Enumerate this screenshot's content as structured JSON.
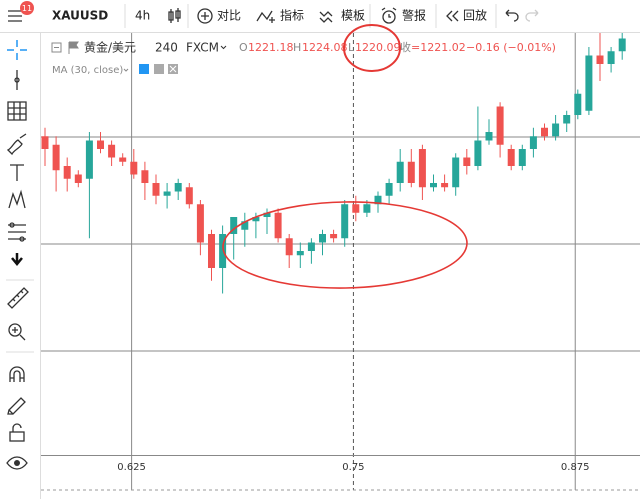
{
  "toolbar": {
    "menu_badge": "11",
    "symbol": "XAUUSD",
    "interval": "4h",
    "buttons": [
      "对比",
      "指标",
      "模板",
      "警报",
      "回放"
    ]
  },
  "legend": {
    "name": "黄金/美元",
    "interval": "240",
    "source": "FXCM",
    "open_label": "O",
    "open": "1221.18",
    "high_label": "H",
    "high": "1224.08",
    "low_label": "L",
    "low": "1220.09",
    "close_label": "收",
    "close": "=1221.02",
    "change": "−0.16 (−0.01%)",
    "indicator": "MA (30, close)"
  },
  "chart_data": {
    "type": "candlestick",
    "up_color": "#26a69a",
    "down_color": "#ef5350",
    "xlim": [
      0.5745,
      0.9115
    ],
    "xticks": [
      0.625,
      0.75,
      0.875
    ],
    "ylim": [
      0,
      100
    ],
    "candles": [
      {
        "open": 75,
        "high": 77,
        "low": 68,
        "close": 72
      },
      {
        "open": 73,
        "high": 75,
        "low": 62,
        "close": 67
      },
      {
        "open": 68,
        "high": 70,
        "low": 62,
        "close": 65
      },
      {
        "open": 66,
        "high": 67,
        "low": 63,
        "close": 64
      },
      {
        "open": 65,
        "high": 76,
        "low": 51,
        "close": 74
      },
      {
        "open": 74,
        "high": 76,
        "low": 71,
        "close": 72
      },
      {
        "open": 73,
        "high": 74,
        "low": 68,
        "close": 70
      },
      {
        "open": 70,
        "high": 71,
        "low": 68,
        "close": 69
      },
      {
        "open": 69,
        "high": 72,
        "low": 65,
        "close": 66
      },
      {
        "open": 67,
        "high": 69,
        "low": 60,
        "close": 64
      },
      {
        "open": 64,
        "high": 66,
        "low": 59,
        "close": 61
      },
      {
        "open": 61,
        "high": 64,
        "low": 58,
        "close": 62
      },
      {
        "open": 62,
        "high": 65,
        "low": 60,
        "close": 64
      },
      {
        "open": 63,
        "high": 64,
        "low": 58,
        "close": 59
      },
      {
        "open": 59,
        "high": 60,
        "low": 47,
        "close": 50
      },
      {
        "open": 52,
        "high": 53,
        "low": 41,
        "close": 44
      },
      {
        "open": 44,
        "high": 54,
        "low": 38,
        "close": 52
      },
      {
        "open": 52,
        "high": 56,
        "low": 46,
        "close": 56
      },
      {
        "open": 53,
        "high": 57,
        "low": 49,
        "close": 55
      },
      {
        "open": 55,
        "high": 57,
        "low": 51,
        "close": 56
      },
      {
        "open": 56,
        "high": 58,
        "low": 52,
        "close": 57
      },
      {
        "open": 57,
        "high": 58,
        "low": 50,
        "close": 51
      },
      {
        "open": 51,
        "high": 52,
        "low": 44,
        "close": 47
      },
      {
        "open": 47,
        "high": 50,
        "low": 44,
        "close": 48
      },
      {
        "open": 48,
        "high": 51,
        "low": 45,
        "close": 50
      },
      {
        "open": 50,
        "high": 53,
        "low": 47,
        "close": 52
      },
      {
        "open": 52,
        "high": 53,
        "low": 50,
        "close": 51
      },
      {
        "open": 51,
        "high": 60,
        "low": 49,
        "close": 59
      },
      {
        "open": 59,
        "high": 61,
        "low": 55,
        "close": 57
      },
      {
        "open": 57,
        "high": 60,
        "low": 56,
        "close": 59
      },
      {
        "open": 59,
        "high": 62,
        "low": 57,
        "close": 61
      },
      {
        "open": 61,
        "high": 65,
        "low": 59,
        "close": 64
      },
      {
        "open": 64,
        "high": 72,
        "low": 62,
        "close": 69
      },
      {
        "open": 69,
        "high": 72,
        "low": 63,
        "close": 64
      },
      {
        "open": 72,
        "high": 73,
        "low": 60,
        "close": 63
      },
      {
        "open": 63,
        "high": 66,
        "low": 62,
        "close": 64
      },
      {
        "open": 64,
        "high": 66,
        "low": 62,
        "close": 63
      },
      {
        "open": 63,
        "high": 71,
        "low": 61,
        "close": 70
      },
      {
        "open": 70,
        "high": 72,
        "low": 66,
        "close": 68
      },
      {
        "open": 68,
        "high": 82,
        "low": 67,
        "close": 74
      },
      {
        "open": 74,
        "high": 79,
        "low": 73,
        "close": 76
      },
      {
        "open": 82,
        "high": 83,
        "low": 70,
        "close": 73
      },
      {
        "open": 72,
        "high": 73,
        "low": 67,
        "close": 68
      },
      {
        "open": 68,
        "high": 73,
        "low": 67,
        "close": 72
      },
      {
        "open": 72,
        "high": 77,
        "low": 70,
        "close": 75
      },
      {
        "open": 77,
        "high": 78,
        "low": 74,
        "close": 75
      },
      {
        "open": 75,
        "high": 80,
        "low": 74,
        "close": 78
      },
      {
        "open": 78,
        "high": 81,
        "low": 76,
        "close": 80
      },
      {
        "open": 80,
        "high": 86,
        "low": 79,
        "close": 85
      },
      {
        "open": 81,
        "high": 96,
        "low": 80,
        "close": 94
      },
      {
        "open": 94,
        "high": 100,
        "low": 88,
        "close": 92
      },
      {
        "open": 92,
        "high": 96,
        "low": 90,
        "close": 95
      },
      {
        "open": 95,
        "high": 100,
        "low": 93,
        "close": 98
      }
    ]
  }
}
